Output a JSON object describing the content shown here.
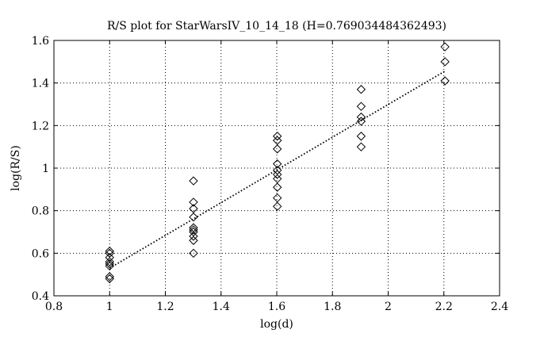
{
  "chart_data": {
    "type": "scatter",
    "title": "R/S plot for StarWarsIV_10_14_18 (H=0.769034484362493)",
    "xlabel": "log(d)",
    "ylabel": "log(R/S)",
    "xlim": [
      0.8,
      2.4
    ],
    "ylim": [
      0.4,
      1.6
    ],
    "xticks": [
      0.8,
      1,
      1.2,
      1.4,
      1.6,
      1.8,
      2,
      2.2,
      2.4
    ],
    "xtick_labels": [
      "0.8",
      "1",
      "1.2",
      "1.4",
      "1.6",
      "1.8",
      "2",
      "2.2",
      "2.4"
    ],
    "yticks": [
      0.4,
      0.6,
      0.8,
      1,
      1.2,
      1.4,
      1.6
    ],
    "ytick_labels": [
      "0.4",
      "0.6",
      "0.8",
      "1",
      "1.2",
      "1.4",
      "1.6"
    ],
    "grid": true,
    "marker": "diamond",
    "points": [
      {
        "x": 1.0,
        "y": 0.61
      },
      {
        "x": 1.0,
        "y": 0.6
      },
      {
        "x": 1.0,
        "y": 0.58
      },
      {
        "x": 1.0,
        "y": 0.56
      },
      {
        "x": 1.0,
        "y": 0.55
      },
      {
        "x": 1.0,
        "y": 0.54
      },
      {
        "x": 1.0,
        "y": 0.49
      },
      {
        "x": 1.0,
        "y": 0.48
      },
      {
        "x": 1.301,
        "y": 0.94
      },
      {
        "x": 1.301,
        "y": 0.84
      },
      {
        "x": 1.301,
        "y": 0.81
      },
      {
        "x": 1.301,
        "y": 0.77
      },
      {
        "x": 1.301,
        "y": 0.72
      },
      {
        "x": 1.301,
        "y": 0.71
      },
      {
        "x": 1.301,
        "y": 0.7
      },
      {
        "x": 1.301,
        "y": 0.68
      },
      {
        "x": 1.301,
        "y": 0.66
      },
      {
        "x": 1.301,
        "y": 0.6
      },
      {
        "x": 1.602,
        "y": 1.15
      },
      {
        "x": 1.602,
        "y": 1.13
      },
      {
        "x": 1.602,
        "y": 1.09
      },
      {
        "x": 1.602,
        "y": 1.02
      },
      {
        "x": 1.602,
        "y": 0.99
      },
      {
        "x": 1.602,
        "y": 0.97
      },
      {
        "x": 1.602,
        "y": 0.95
      },
      {
        "x": 1.602,
        "y": 0.91
      },
      {
        "x": 1.602,
        "y": 0.86
      },
      {
        "x": 1.602,
        "y": 0.82
      },
      {
        "x": 1.903,
        "y": 1.37
      },
      {
        "x": 1.903,
        "y": 1.29
      },
      {
        "x": 1.903,
        "y": 1.24
      },
      {
        "x": 1.903,
        "y": 1.22
      },
      {
        "x": 1.903,
        "y": 1.15
      },
      {
        "x": 1.903,
        "y": 1.1
      },
      {
        "x": 2.204,
        "y": 1.57
      },
      {
        "x": 2.204,
        "y": 1.5
      },
      {
        "x": 2.204,
        "y": 1.41
      }
    ],
    "fit_line": {
      "style": "dotted",
      "slope": 0.769034484362493,
      "x": [
        1.0,
        2.204
      ],
      "y": [
        0.53,
        1.456
      ]
    }
  }
}
